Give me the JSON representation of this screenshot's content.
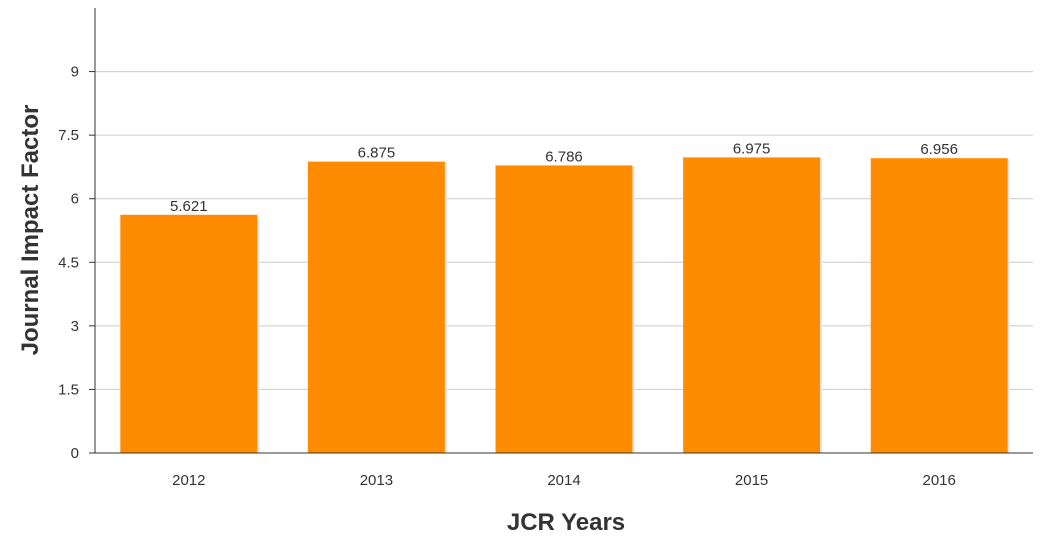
{
  "chart_data": {
    "type": "bar",
    "title": "",
    "xlabel": "JCR Years",
    "ylabel": "Journal Impact Factor",
    "categories": [
      "2012",
      "2013",
      "2014",
      "2015",
      "2016"
    ],
    "values": [
      5.621,
      6.875,
      6.786,
      6.975,
      6.956
    ],
    "data_labels": [
      "5.621",
      "6.875",
      "6.786",
      "6.975",
      "6.956"
    ],
    "ylim": [
      0,
      10.5
    ],
    "yticks": [
      0,
      1.5,
      3,
      4.5,
      6,
      7.5,
      9
    ],
    "ytick_labels": [
      "0",
      "1.5",
      "3",
      "4.5",
      "6",
      "7.5",
      "9"
    ],
    "grid": true,
    "legend": "none",
    "colors": {
      "bar": "#ff8c00",
      "grid": "#cccccc",
      "axis": "#333333"
    }
  }
}
